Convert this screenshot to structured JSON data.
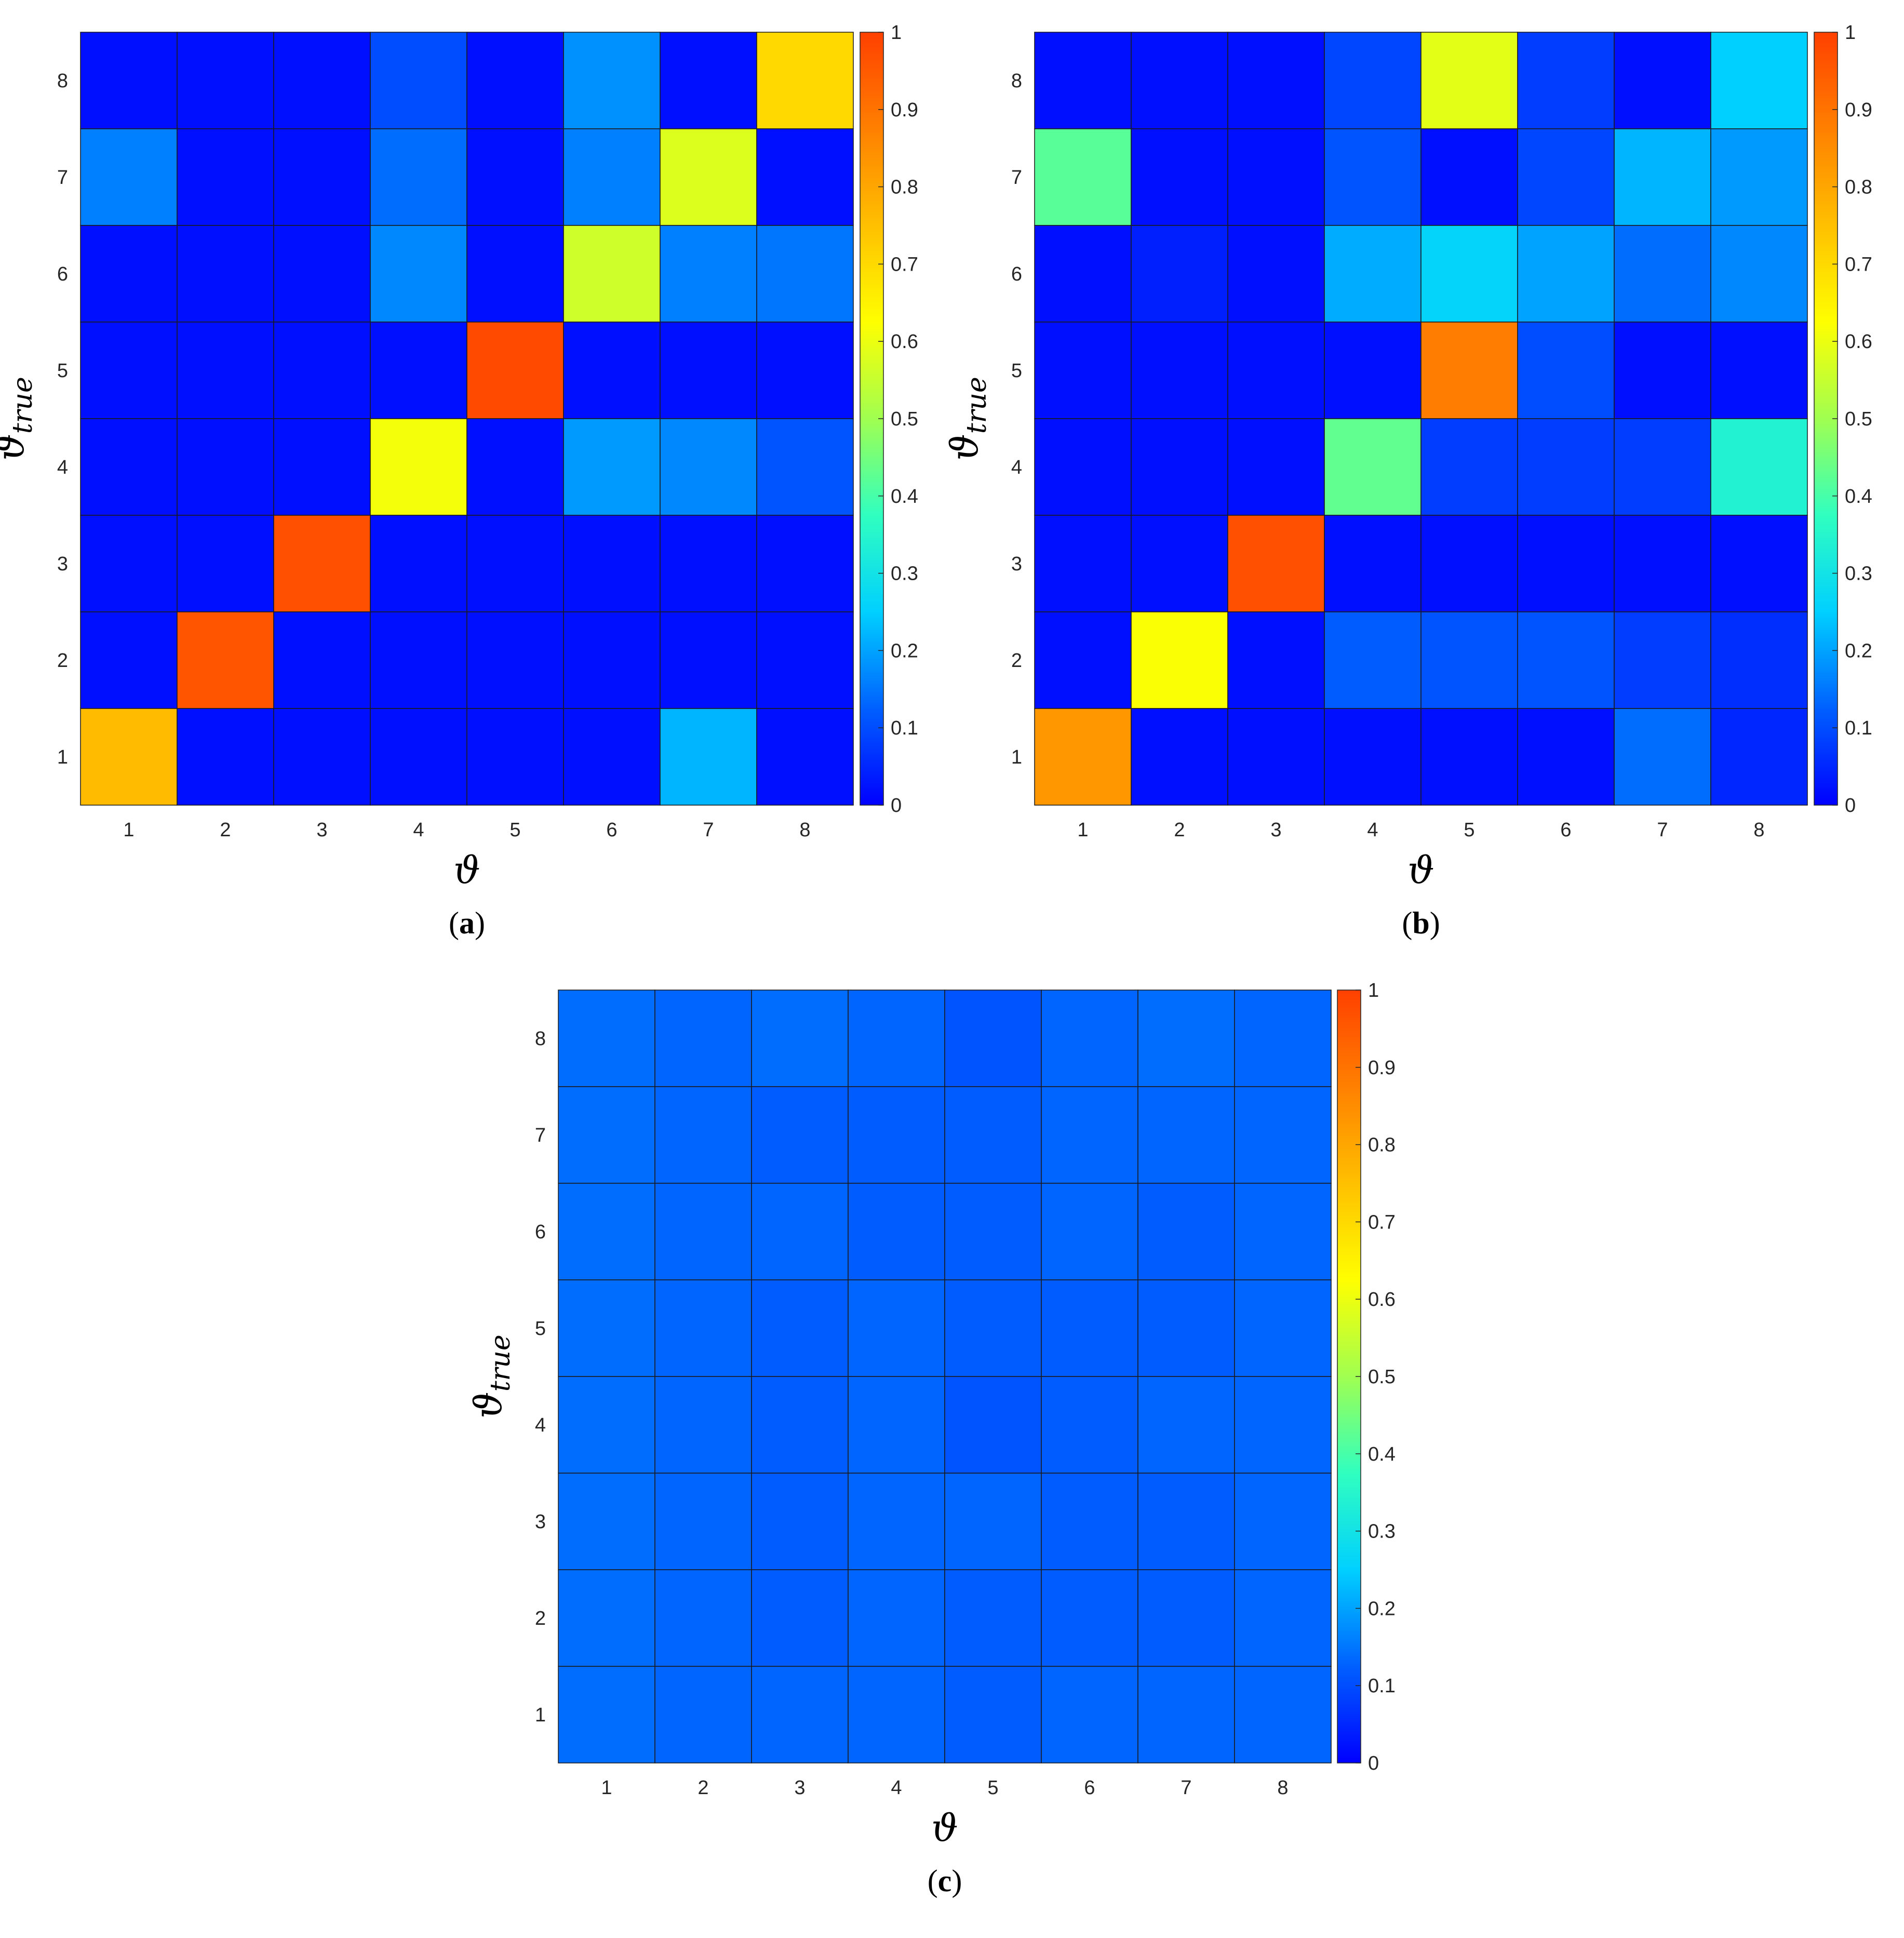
{
  "figure": {
    "colors": {
      "colormap": [
        "#0000ff",
        "#0060ff",
        "#00d0ff",
        "#30ffc0",
        "#a0ff50",
        "#ffff00",
        "#ffc000",
        "#ff8000",
        "#ff4000"
      ],
      "cell_border": "#1a1a1a",
      "axis_text": "#262626"
    }
  },
  "chart_data": [
    {
      "type": "heatmap",
      "panel_label": "(a)",
      "title": "",
      "xlabel": "ϑ",
      "ylabel": "ϑ",
      "ylabel_subscript": "true",
      "x_categories": [
        "1",
        "2",
        "3",
        "4",
        "5",
        "6",
        "7",
        "8"
      ],
      "y_categories": [
        "1",
        "2",
        "3",
        "4",
        "5",
        "6",
        "7",
        "8"
      ],
      "colorbar": {
        "min": 0,
        "max": 1,
        "ticks": [
          "0",
          "0.1",
          "0.2",
          "0.3",
          "0.4",
          "0.5",
          "0.6",
          "0.7",
          "0.8",
          "0.9",
          "1"
        ]
      },
      "rows_from_top": [
        [
          0.02,
          0.02,
          0.02,
          0.1,
          0.02,
          0.18,
          0.02,
          0.7
        ],
        [
          0.16,
          0.02,
          0.02,
          0.14,
          0.02,
          0.16,
          0.58,
          0.02
        ],
        [
          0.02,
          0.02,
          0.02,
          0.17,
          0.02,
          0.56,
          0.16,
          0.15
        ],
        [
          0.02,
          0.02,
          0.02,
          0.02,
          0.98,
          0.02,
          0.02,
          0.02
        ],
        [
          0.02,
          0.02,
          0.02,
          0.61,
          0.02,
          0.19,
          0.17,
          0.11
        ],
        [
          0.02,
          0.02,
          0.97,
          0.02,
          0.02,
          0.02,
          0.02,
          0.02
        ],
        [
          0.02,
          0.96,
          0.02,
          0.02,
          0.02,
          0.02,
          0.02,
          0.02
        ],
        [
          0.76,
          0.02,
          0.02,
          0.02,
          0.02,
          0.02,
          0.22,
          0.02
        ]
      ]
    },
    {
      "type": "heatmap",
      "panel_label": "(b)",
      "title": "",
      "xlabel": "ϑ",
      "ylabel": "ϑ",
      "ylabel_subscript": "true",
      "x_categories": [
        "1",
        "2",
        "3",
        "4",
        "5",
        "6",
        "7",
        "8"
      ],
      "y_categories": [
        "1",
        "2",
        "3",
        "4",
        "5",
        "6",
        "7",
        "8"
      ],
      "colorbar": {
        "min": 0,
        "max": 1,
        "ticks": [
          "0",
          "0.1",
          "0.2",
          "0.3",
          "0.4",
          "0.5",
          "0.6",
          "0.7",
          "0.8",
          "0.9",
          "1"
        ]
      },
      "rows_from_top": [
        [
          0.02,
          0.02,
          0.02,
          0.09,
          0.59,
          0.08,
          0.02,
          0.25
        ],
        [
          0.42,
          0.02,
          0.02,
          0.11,
          0.02,
          0.09,
          0.22,
          0.19
        ],
        [
          0.02,
          0.04,
          0.02,
          0.21,
          0.26,
          0.2,
          0.14,
          0.17
        ],
        [
          0.02,
          0.02,
          0.02,
          0.02,
          0.88,
          0.1,
          0.02,
          0.02
        ],
        [
          0.02,
          0.02,
          0.02,
          0.43,
          0.08,
          0.08,
          0.08,
          0.34
        ],
        [
          0.02,
          0.02,
          0.97,
          0.02,
          0.02,
          0.02,
          0.02,
          0.02
        ],
        [
          0.02,
          0.62,
          0.02,
          0.12,
          0.11,
          0.11,
          0.08,
          0.06
        ],
        [
          0.83,
          0.02,
          0.02,
          0.02,
          0.02,
          0.02,
          0.14,
          0.05
        ]
      ]
    },
    {
      "type": "heatmap",
      "panel_label": "(c)",
      "title": "",
      "xlabel": "ϑ",
      "ylabel": "ϑ",
      "ylabel_subscript": "true",
      "x_categories": [
        "1",
        "2",
        "3",
        "4",
        "5",
        "6",
        "7",
        "8"
      ],
      "y_categories": [
        "1",
        "2",
        "3",
        "4",
        "5",
        "6",
        "7",
        "8"
      ],
      "colorbar": {
        "min": 0,
        "max": 1,
        "ticks": [
          "0",
          "0.1",
          "0.2",
          "0.3",
          "0.4",
          "0.5",
          "0.6",
          "0.7",
          "0.8",
          "0.9",
          "1"
        ]
      },
      "rows_from_top": [
        [
          0.14,
          0.13,
          0.14,
          0.13,
          0.11,
          0.13,
          0.14,
          0.13
        ],
        [
          0.14,
          0.13,
          0.12,
          0.12,
          0.12,
          0.13,
          0.13,
          0.13
        ],
        [
          0.14,
          0.13,
          0.13,
          0.12,
          0.12,
          0.13,
          0.12,
          0.13
        ],
        [
          0.14,
          0.13,
          0.12,
          0.13,
          0.12,
          0.12,
          0.12,
          0.13
        ],
        [
          0.14,
          0.13,
          0.12,
          0.13,
          0.11,
          0.12,
          0.13,
          0.13
        ],
        [
          0.14,
          0.13,
          0.12,
          0.13,
          0.13,
          0.12,
          0.12,
          0.13
        ],
        [
          0.14,
          0.13,
          0.12,
          0.13,
          0.12,
          0.12,
          0.12,
          0.13
        ],
        [
          0.14,
          0.13,
          0.13,
          0.13,
          0.12,
          0.13,
          0.13,
          0.13
        ]
      ]
    }
  ]
}
